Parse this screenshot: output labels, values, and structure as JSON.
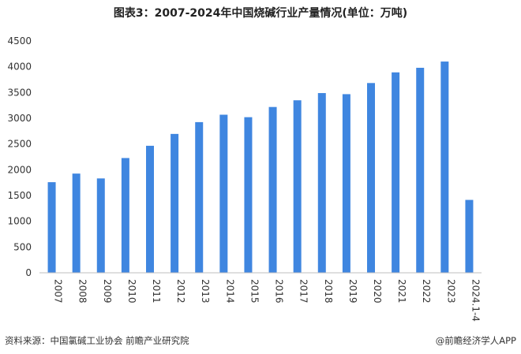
{
  "chart_data": {
    "type": "bar",
    "title": "图表3：2007-2024年中国烧碱行业产量情况(单位：万吨)",
    "categories": [
      "2007",
      "2008",
      "2009",
      "2010",
      "2011",
      "2012",
      "2013",
      "2014",
      "2015",
      "2016",
      "2017",
      "2018",
      "2019",
      "2020",
      "2021",
      "2022",
      "2023",
      "2024.1-4"
    ],
    "values": [
      1759,
      1926,
      1832,
      2228,
      2466,
      2696,
      2925,
      3069,
      3021,
      3219,
      3349,
      3489,
      3468,
      3684,
      3891,
      3980,
      4101,
      1415
    ],
    "ylim": [
      0,
      4500
    ],
    "yticks": [
      0,
      500,
      1000,
      1500,
      2000,
      2500,
      3000,
      3500,
      4000,
      4500
    ],
    "ytick_labels": [
      "0",
      "500",
      "1000",
      "1500",
      "2000",
      "2500",
      "3000",
      "3500",
      "4000",
      "4500"
    ],
    "bar_color": "#3f86e0",
    "grid": false,
    "legend": "none"
  },
  "footer": {
    "source": "资料来源：中国氯碱工业协会 前瞻产业研究院",
    "brand": "@前瞻经济学人APP"
  }
}
